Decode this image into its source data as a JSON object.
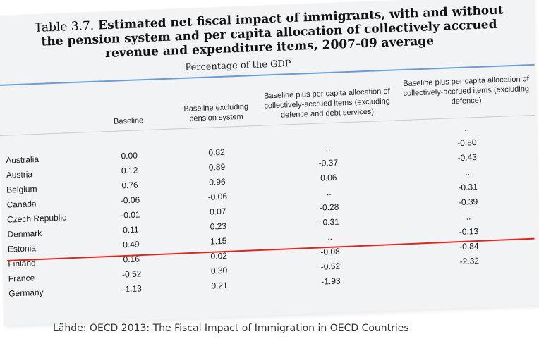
{
  "table": {
    "label": "Table 3.7.",
    "title": "Estimated net fiscal impact of immigrants, with and without the pension system and per capita allocation of collectively accrued revenue and expenditure items, 2007-09 average",
    "subtitle": "Percentage of the GDP",
    "columns": [
      "Baseline",
      "Baseline excluding pension system",
      "Baseline plus per capita allocation of collectively-accrued items (excluding defence and debt services)",
      "Baseline plus per capita allocation of collectively-accrued items (excluding defence)"
    ],
    "rows": [
      {
        "country": "",
        "v": [
          "",
          "",
          "",
          ".."
        ]
      },
      {
        "country": "Australia",
        "v": [
          "0.00",
          "0.82",
          "..",
          "-0.80"
        ]
      },
      {
        "country": "Austria",
        "v": [
          "0.12",
          "0.89",
          "-0.37",
          "-0.43"
        ]
      },
      {
        "country": "Belgium",
        "v": [
          "0.76",
          "0.96",
          "0.06",
          ".."
        ]
      },
      {
        "country": "Canada",
        "v": [
          "-0.06",
          "-0.06",
          "..",
          "-0.31"
        ]
      },
      {
        "country": "Czech Republic",
        "v": [
          "-0.01",
          "0.07",
          "-0.28",
          "-0.39"
        ]
      },
      {
        "country": "Denmark",
        "v": [
          "0.11",
          "0.23",
          "-0.31",
          ".."
        ]
      },
      {
        "country": "Estonia",
        "v": [
          "0.49",
          "1.15",
          "..",
          "-0.13"
        ]
      },
      {
        "country": "Finland",
        "v": [
          "0.16",
          "0.02",
          "-0.08",
          "-0.84"
        ]
      },
      {
        "country": "France",
        "v": [
          "-0.52",
          "0.30",
          "-0.52",
          "-2.32"
        ]
      },
      {
        "country": "Germany",
        "v": [
          "-1.13",
          "0.21",
          "-1.93",
          ""
        ]
      }
    ]
  },
  "caption": "Lähde: OECD 2013: The Fiscal Impact of Immigration in OECD Countries",
  "colors": {
    "highlight_line": "#e0261e",
    "rule": "#6a9fd4"
  }
}
